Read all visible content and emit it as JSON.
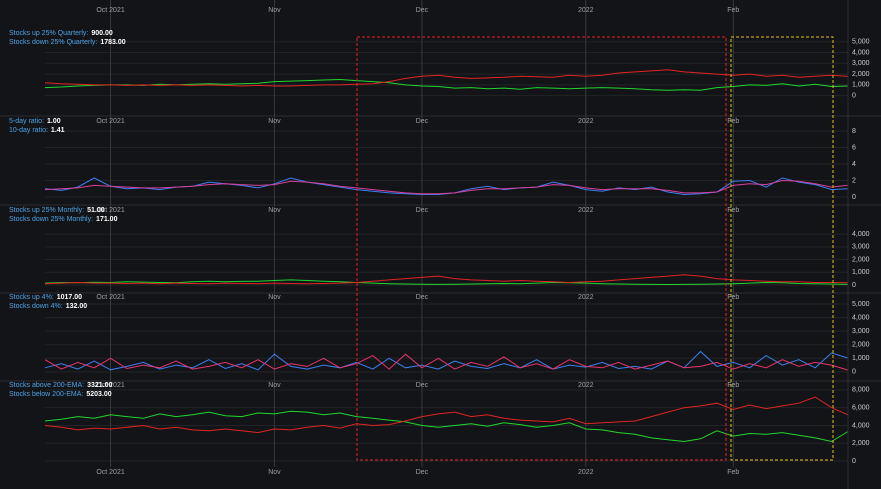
{
  "chart_data": [
    {
      "type": "line",
      "categories": [
        null,
        null,
        null,
        null,
        "Oct 2021",
        null,
        null,
        null,
        null,
        null,
        null,
        null,
        null,
        null,
        "Nov",
        null,
        null,
        null,
        null,
        null,
        null,
        null,
        null,
        "Dec",
        null,
        null,
        null,
        null,
        null,
        null,
        null,
        null,
        null,
        "2022",
        null,
        null,
        null,
        null,
        null,
        null,
        null,
        null,
        "Feb",
        null,
        null,
        null,
        null,
        null,
        null,
        null
      ],
      "ylim": [
        -1700,
        7200
      ],
      "yticks": [
        0,
        {
          "value": 1000,
          "label": "1,000"
        },
        {
          "value": 2000,
          "label": "2,000"
        },
        {
          "value": 3000,
          "label": "3,000"
        },
        {
          "value": 4000,
          "label": "4,000"
        },
        {
          "value": 5000,
          "label": "5,000"
        }
      ],
      "grid": true,
      "series": [
        {
          "name": "Stocks up 25% Quarterly:",
          "last": {
            "value": 900,
            "label": "900.00"
          },
          "color": "#22d630",
          "values": [
            750,
            800,
            900,
            950,
            1000,
            1000,
            950,
            1050,
            1000,
            1050,
            1100,
            1050,
            1100,
            1150,
            1300,
            1350,
            1400,
            1450,
            1500,
            1400,
            1300,
            1200,
            1000,
            900,
            850,
            700,
            750,
            650,
            700,
            600,
            750,
            700,
            650,
            700,
            750,
            700,
            650,
            550,
            500,
            550,
            500,
            750,
            850,
            1000,
            950,
            1100,
            900,
            1050,
            850,
            900
          ]
        },
        {
          "name": "Stocks down 25% Quarterly:",
          "last": {
            "value": 1783,
            "label": "1783.00"
          },
          "color": "#e02424",
          "values": [
            1200,
            1100,
            1050,
            1000,
            1000,
            950,
            1000,
            950,
            1000,
            950,
            1000,
            950,
            900,
            950,
            900,
            900,
            950,
            1000,
            1000,
            1050,
            1100,
            1300,
            1600,
            1800,
            1900,
            1700,
            1600,
            1650,
            1700,
            1800,
            1750,
            1700,
            1900,
            1800,
            1900,
            2100,
            2200,
            2300,
            2400,
            2200,
            2100,
            2000,
            1900,
            2000,
            1800,
            1900,
            1700,
            1800,
            1900,
            1783
          ]
        }
      ]
    },
    {
      "type": "line",
      "categories": [
        null,
        null,
        null,
        null,
        "Oct 2021",
        null,
        null,
        null,
        null,
        null,
        null,
        null,
        null,
        null,
        "Nov",
        null,
        null,
        null,
        null,
        null,
        null,
        null,
        null,
        "Dec",
        null,
        null,
        null,
        null,
        null,
        null,
        null,
        null,
        null,
        "2022",
        null,
        null,
        null,
        null,
        null,
        null,
        null,
        null,
        "Feb",
        null,
        null,
        null,
        null,
        null,
        null,
        null
      ],
      "ylim": [
        -0.85,
        8.6
      ],
      "yticks": [
        0,
        2,
        4,
        6,
        8
      ],
      "grid": true,
      "series": [
        {
          "name": "5-day ratio:",
          "last": {
            "value": 1,
            "label": "1.00"
          },
          "color": "#3b7ff0",
          "values": [
            1.0,
            0.8,
            1.2,
            2.3,
            1.3,
            1.0,
            1.1,
            0.9,
            1.2,
            1.3,
            1.8,
            1.6,
            1.4,
            1.1,
            1.6,
            2.3,
            1.8,
            1.5,
            1.2,
            0.9,
            0.7,
            0.5,
            0.4,
            0.3,
            0.3,
            0.5,
            1.0,
            1.3,
            0.9,
            1.1,
            1.2,
            1.8,
            1.4,
            0.9,
            0.7,
            1.1,
            0.9,
            1.2,
            0.6,
            0.3,
            0.4,
            0.6,
            1.9,
            2.0,
            1.2,
            2.3,
            1.8,
            1.5,
            0.9,
            1.0
          ]
        },
        {
          "name": "10-day ratio:",
          "last": {
            "value": 1.41,
            "label": "1.41"
          },
          "color": "#d6409a",
          "values": [
            0.9,
            1.0,
            1.1,
            1.4,
            1.3,
            1.2,
            1.1,
            1.1,
            1.2,
            1.3,
            1.5,
            1.6,
            1.5,
            1.4,
            1.5,
            1.9,
            1.8,
            1.6,
            1.3,
            1.1,
            0.9,
            0.7,
            0.5,
            0.4,
            0.4,
            0.5,
            0.8,
            1.0,
            1.0,
            1.1,
            1.2,
            1.5,
            1.4,
            1.1,
            0.9,
            1.0,
            1.0,
            1.0,
            0.8,
            0.5,
            0.5,
            0.6,
            1.4,
            1.6,
            1.5,
            2.0,
            1.9,
            1.6,
            1.2,
            1.41
          ]
        }
      ]
    },
    {
      "type": "line",
      "categories": [
        null,
        null,
        null,
        null,
        "Oct 2021",
        null,
        null,
        null,
        null,
        null,
        null,
        null,
        null,
        null,
        "Nov",
        null,
        null,
        null,
        null,
        null,
        null,
        null,
        null,
        "Dec",
        null,
        null,
        null,
        null,
        null,
        null,
        null,
        null,
        null,
        "2022",
        null,
        null,
        null,
        null,
        null,
        null,
        null,
        null,
        "Feb",
        null,
        null,
        null,
        null,
        null,
        null,
        null
      ],
      "ylim": [
        -550,
        5500
      ],
      "yticks": [
        0,
        {
          "value": 1000,
          "label": "1,000"
        },
        {
          "value": 2000,
          "label": "2,000"
        },
        {
          "value": 3000,
          "label": "3,000"
        },
        {
          "value": 4000,
          "label": "4,000"
        }
      ],
      "grid": true,
      "series": [
        {
          "name": "Stocks up 25% Monthly:",
          "last": {
            "value": 51,
            "label": "51.00"
          },
          "color": "#22d630",
          "values": [
            150,
            200,
            180,
            220,
            200,
            250,
            230,
            200,
            180,
            250,
            300,
            250,
            280,
            300,
            350,
            400,
            350,
            300,
            250,
            200,
            150,
            100,
            80,
            60,
            50,
            60,
            80,
            100,
            120,
            100,
            150,
            200,
            180,
            150,
            100,
            80,
            60,
            50,
            40,
            50,
            60,
            80,
            100,
            150,
            200,
            180,
            120,
            100,
            80,
            51
          ]
        },
        {
          "name": "Stocks down 25% Monthly:",
          "last": {
            "value": 171,
            "label": "171.00"
          },
          "color": "#e02424",
          "values": [
            100,
            150,
            200,
            150,
            150,
            120,
            150,
            100,
            150,
            120,
            100,
            150,
            120,
            100,
            150,
            120,
            100,
            120,
            150,
            200,
            300,
            400,
            500,
            600,
            700,
            500,
            400,
            350,
            300,
            350,
            300,
            250,
            200,
            250,
            300,
            400,
            500,
            600,
            700,
            800,
            700,
            500,
            400,
            350,
            300,
            250,
            250,
            200,
            200,
            171
          ]
        }
      ]
    },
    {
      "type": "line",
      "categories": [
        null,
        null,
        null,
        null,
        "Oct 2021",
        null,
        null,
        null,
        null,
        null,
        null,
        null,
        null,
        null,
        "Nov",
        null,
        null,
        null,
        null,
        null,
        null,
        null,
        null,
        "Dec",
        null,
        null,
        null,
        null,
        null,
        null,
        null,
        null,
        null,
        "2022",
        null,
        null,
        null,
        null,
        null,
        null,
        null,
        null,
        "Feb",
        null,
        null,
        null,
        null,
        null,
        null,
        null
      ],
      "ylim": [
        -600,
        5150
      ],
      "yticks": [
        0,
        {
          "value": 1000,
          "label": "1,000"
        },
        {
          "value": 2000,
          "label": "2,000"
        },
        {
          "value": 3000,
          "label": "3,000"
        },
        {
          "value": 4000,
          "label": "4,000"
        },
        {
          "value": 5000,
          "label": "5,000"
        }
      ],
      "grid": true,
      "series": [
        {
          "name": "Stocks up 4%:",
          "last": {
            "value": 1017,
            "label": "1017.00"
          },
          "color": "#3b7ff0",
          "values": [
            300,
            600,
            200,
            800,
            150,
            400,
            700,
            200,
            500,
            300,
            900,
            250,
            600,
            150,
            1300,
            400,
            200,
            500,
            300,
            700,
            200,
            1000,
            300,
            500,
            200,
            800,
            400,
            250,
            600,
            300,
            900,
            200,
            500,
            350,
            700,
            250,
            400,
            200,
            800,
            300,
            1500,
            400,
            700,
            300,
            1200,
            500,
            900,
            300,
            1400,
            1017
          ]
        },
        {
          "name": "Stocks down 4%:",
          "last": {
            "value": 132,
            "label": "132.00"
          },
          "color": "#e8336b",
          "values": [
            900,
            200,
            700,
            300,
            1000,
            250,
            500,
            300,
            800,
            200,
            400,
            700,
            300,
            900,
            200,
            600,
            400,
            1000,
            300,
            600,
            1200,
            200,
            1300,
            300,
            1000,
            200,
            700,
            400,
            1100,
            300,
            600,
            200,
            900,
            400,
            300,
            700,
            200,
            500,
            800,
            300,
            400,
            700,
            200,
            600,
            300,
            900,
            400,
            700,
            500,
            132
          ]
        }
      ]
    },
    {
      "type": "line",
      "categories": [
        null,
        null,
        null,
        null,
        "Oct 2021",
        null,
        null,
        null,
        null,
        null,
        null,
        null,
        null,
        null,
        "Nov",
        null,
        null,
        null,
        null,
        null,
        null,
        null,
        null,
        "Dec",
        null,
        null,
        null,
        null,
        null,
        null,
        null,
        null,
        null,
        "2022",
        null,
        null,
        null,
        null,
        null,
        null,
        null,
        null,
        "Feb",
        null,
        null,
        null,
        null,
        null,
        null,
        null
      ],
      "ylim": [
        -560,
        8100
      ],
      "yticks": [
        0,
        {
          "value": 2000,
          "label": "2,000"
        },
        {
          "value": 4000,
          "label": "4,000"
        },
        {
          "value": 6000,
          "label": "6,000"
        },
        {
          "value": 8000,
          "label": "8,000"
        }
      ],
      "grid": true,
      "series": [
        {
          "name": "Stocks above 200-EMA:",
          "last": {
            "value": 3321,
            "label": "3321.00"
          },
          "color": "#22d630",
          "values": [
            4500,
            4700,
            5000,
            4800,
            5200,
            5000,
            4800,
            5300,
            5000,
            5200,
            5500,
            5100,
            5000,
            5400,
            5300,
            5600,
            5500,
            5200,
            5400,
            5000,
            4800,
            4600,
            4400,
            4000,
            3800,
            4000,
            4200,
            3900,
            4300,
            4100,
            3800,
            4000,
            4300,
            3600,
            3500,
            3200,
            3000,
            2600,
            2400,
            2200,
            2500,
            3400,
            2800,
            3100,
            3000,
            3200,
            2900,
            2600,
            2200,
            3321
          ]
        },
        {
          "name": "Stocks below 200-EMA:",
          "last": {
            "value": 5203,
            "label": "5203.00"
          },
          "color": "#e02424",
          "values": [
            4000,
            3800,
            3500,
            3700,
            3600,
            3800,
            4000,
            3600,
            3800,
            3500,
            3400,
            3600,
            3400,
            3200,
            3600,
            3500,
            3800,
            4000,
            3700,
            4200,
            4000,
            4100,
            4500,
            5000,
            5300,
            5500,
            5000,
            5200,
            4800,
            4600,
            4500,
            4400,
            4800,
            4200,
            4300,
            4400,
            4500,
            5000,
            5500,
            6000,
            6200,
            6500,
            5800,
            6300,
            5900,
            6200,
            6500,
            7200,
            6000,
            5203
          ]
        }
      ]
    }
  ]
}
